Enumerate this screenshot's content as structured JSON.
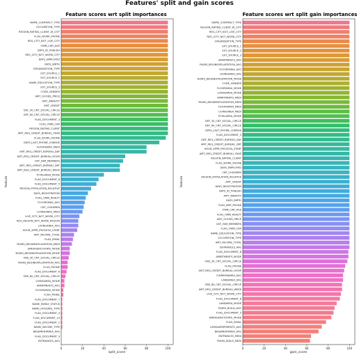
{
  "suptitle": "Features' split and gain scores",
  "chart_data": [
    {
      "type": "bar",
      "orientation": "horizontal",
      "title": "Feature scores wrt split importances",
      "xlabel": "split_score",
      "ylabel": "feature",
      "xlim": [
        0,
        105
      ],
      "xticks": [
        0,
        20,
        40,
        60,
        80,
        100
      ],
      "grid": false,
      "legend": "none",
      "palette": "husl (red-orange-yellow-green-teal-blue-purple-pink)",
      "categories": [
        "NAME_CONTRACT_TYPE",
        "OCCUPATION_TYPE",
        "REGION_RATING_CLIENT_W_CITY",
        "FLAG_WORK_PHONE",
        "REG_CITY_NOT_LIVE_CITY",
        "OWN_CAR_AGE",
        "DAYS_ID_PUBLISH",
        "REG_CITY_NOT_WORK_CITY",
        "DAYS_EMPLOYED",
        "DAYS_BIRTH",
        "ORGANIZATION_TYPE",
        "EXT_SOURCE_1",
        "EXT_SOURCE_2",
        "NAME_EDUCATION_TYPE",
        "EXT_SOURCE_3",
        "CODE_GENDER",
        "AMT_GOODS_PRICE",
        "AMT_ANNUITY",
        "AMT_CREDIT",
        "DEF_30_CNT_SOCIAL_CIRCLE",
        "DEF_60_CNT_SOCIAL_CIRCLE",
        "FLAG_DOCUMENT_3",
        "FLAG_OWN_CAR",
        "REGION_RATING_CLIENT",
        "AMT_REQ_CREDIT_BUREAU_YEAR",
        "FLAG_WORK_PHONE",
        "DAYS_LAST_PHONE_CHANGE",
        "FLOORSMAX_MEDI",
        "AMT_REQ_CREDIT_BUREAU_DAY",
        "AMT_REQ_CREDIT_BUREAU_HOUR",
        "CNT_FAM_MEMBERS",
        "AMT_REQ_CREDIT_BUREAU_QRT",
        "AMT_REQ_CREDIT_BUREAU_WEEK",
        "TOTALAREA_MODE",
        "FLAG_DOCUMENT_8",
        "FLAG_DOCUMENT_5",
        "REGION_POPULATION_RELATIVE",
        "DAYS_REGISTRATION",
        "FLAG_OWN_REALTY",
        "FLOORSMAX_AVG",
        "CNT_CHILDREN",
        "LIVINGAREA_MEDI",
        "LIVE_CITY_NOT_WORK_CITY",
        "REG_REGION_NOT_WORK_REGION",
        "LIVINGAREA_AVG",
        "HOUR_APPR_PROCESS_START",
        "AMT_INCOME_TOTAL",
        "FLAG_EMAIL",
        "YEARS_BEGINEXPLUATATION_MEDI",
        "EMERGENCYSTATE_MODE",
        "YEARS_BEGINEXPLUATATION_MODE",
        "OBS_30_CNT_SOCIAL_CIRCLE",
        "YEARS_BEGINEXPLUATATION_AVG",
        "FLAG_PHONE",
        "FLAG_DOCUMENT_6",
        "OBS_60_CNT_SOCIAL_CIRCLE",
        "LIVINGAREA_MODE",
        "APARTMENTS_AVG",
        "FLOORSMAX_MODE",
        "FLAG_MOBIL",
        "FLAG_DOCUMENT_7",
        "NAME_FAMILY_STATUS",
        "NAME_HOUSING_TYPE",
        "FLAG_DOCUMENT_4",
        "FLAG_DOCUMENT_10",
        "FLAG_DOCUMENT_2",
        "NAME_INCOME_TYPE",
        "BASEMENTAREA_AVG",
        "FLAG_DOCUMENT_9",
        "ENTRANCES_AVG"
      ],
      "values": [
        100,
        100,
        100,
        100,
        100,
        100,
        100,
        100,
        100,
        100,
        100,
        100,
        100,
        100,
        100,
        100,
        100,
        100,
        100,
        100,
        100,
        100,
        100,
        100,
        100,
        98,
        92,
        80,
        80,
        60,
        58,
        55,
        55,
        40,
        35,
        33,
        28,
        25,
        23,
        22,
        21,
        20,
        17,
        16,
        16,
        15,
        12,
        11,
        10,
        8,
        8,
        7,
        6,
        6,
        5,
        4,
        3,
        3,
        2,
        2,
        1,
        1,
        1,
        1,
        1,
        1,
        1,
        0,
        0,
        0
      ],
      "colors": [
        "#f0788b",
        "#f07a7e",
        "#f07e6f",
        "#ef835f",
        "#ec884c",
        "#e88e3f",
        "#e39336",
        "#de9733",
        "#d89c32",
        "#d1a031",
        "#c9a431",
        "#c1a831",
        "#b7ab31",
        "#acaf31",
        "#a0b231",
        "#93b432",
        "#86b734",
        "#79ba38",
        "#6cbb3e",
        "#5ebd45",
        "#4fbe4f",
        "#41be5d",
        "#35be6b",
        "#31bd78",
        "#32bc84",
        "#33ba8f",
        "#35b999",
        "#36b8a1",
        "#37b7a9",
        "#37b6b0",
        "#38b5b7",
        "#39b4bd",
        "#3ab3c3",
        "#3bb1ca",
        "#3cb0d0",
        "#3eaed7",
        "#40acdd",
        "#44a9e2",
        "#4ba6e8",
        "#55a2ec",
        "#609ef0",
        "#6c99f2",
        "#7995f4",
        "#8690f4",
        "#948bf3",
        "#a186f1",
        "#ad81ef",
        "#b87eec",
        "#c27ae9",
        "#cc76e5",
        "#d573e1",
        "#dd71dc",
        "#e46fd6",
        "#e96fcf",
        "#ed6fc8",
        "#f070c1",
        "#f272b9",
        "#f374b1",
        "#f476aa",
        "#f578a3",
        "#f47a9b",
        "#f47b94",
        "#f37c8e",
        "#f37d88",
        "#f37e83",
        "#f37f7f",
        "#f37f7b",
        "#f37f78",
        "#f37f75",
        "#f37f73"
      ]
    },
    {
      "type": "bar",
      "orientation": "horizontal",
      "title": "Feature scores wrt split gain importances",
      "xlabel": "gain_score",
      "ylabel": "feature",
      "xlim": [
        0,
        105
      ],
      "xticks": [
        0,
        20,
        40,
        60,
        80,
        100
      ],
      "grid": false,
      "legend": "none",
      "palette": "husl (red-orange-yellow-green-teal-blue-purple-pink)",
      "categories": [
        "NAME_CONTRACT_TYPE",
        "REGION_RATING_CLIENT_W_CITY",
        "REG_CITY_NOT_LIVE_CITY",
        "REG_CITY_NOT_WORK_CITY",
        "ORGANIZATION_TYPE",
        "EXT_SOURCE_1",
        "EXT_SOURCE_2",
        "EXT_SOURCE_3",
        "APARTMENTS_AVG",
        "YEARS_BEGINEXPLUATATION_AVG",
        "FLOORSMAX_AVG",
        "LIVINGAREA_AVG",
        "YEARS_BEGINEXPLUATATION_MODE",
        "CODE_GENDER",
        "FLOORSMAX_MODE",
        "LIVINGAREA_MODE",
        "APARTMENTS_MEDI",
        "YEARS_BEGINEXPLUATATION_MEDI",
        "FLOORSMAX_MEDI",
        "LIVINGAREA_MEDI",
        "TOTALAREA_MODE",
        "DEF_30_CNT_SOCIAL_CIRCLE",
        "DEF_60_CNT_SOCIAL_CIRCLE",
        "DAYS_LAST_PHONE_CHANGE",
        "FLAG_DOCUMENT_3",
        "AMT_REQ_CREDIT_BUREAU_DAY",
        "AMT_REQ_CREDIT_BUREAU_QRT",
        "HOUR_APPR_PROCESS_START",
        "AMT_REQ_CREDIT_BUREAU_YEAR",
        "REGION_RATING_CLIENT",
        "FLAG_WORK_PHONE",
        "DAYS_EMPLOYED",
        "CNT_CHILDREN",
        "REGION_POPULATION_RELATIVE",
        "AMT_CREDIT",
        "DAYS_REGISTRATION",
        "DAYS_ID_PUBLISH",
        "AMT_ANNUITY",
        "DAYS_BIRTH",
        "FLAG_EMP_PHONE",
        "OWN_CAR_AGE",
        "FLAG_OWN_REALTY",
        "AMT_GOODS_PRICE",
        "CNT_FAM_MEMBERS",
        "FLAG_OWN_CAR",
        "NAME_EDUCATION_TYPE",
        "OCCUPATION_TYPE",
        "AMT_INCOME_TOTAL",
        "ENTRANCES_AVG",
        "FLAG_DOCUMENT_8",
        "APARTMENTS_MODE",
        "OBS_30_CNT_SOCIAL_CIRCLE",
        "FLAG_PHONE",
        "AMT_REQ_CREDIT_BUREAU_HOUR",
        "COMMONAREA_AVG",
        "LANDAREA_AVG",
        "OBS_60_CNT_SOCIAL_CIRCLE",
        "AMT_REQ_CREDIT_BUREAU_WEEK",
        "LIVE_CITY_NOT_WORK_CITY",
        "FLAG_DOCUMENT_6",
        "LANDAREA_MODE",
        "YEARS_BUILD_AVG",
        "FLAG_DOCUMENT_5",
        "EMERGENCYSTATE_MODE",
        "FLAG_EMAIL",
        "LIVINGAPARTMENTS_AVG",
        "BASEMENTAREA_AVG",
        "ENTRANCES_MEDI",
        "YEARS_BUILD_MEDI"
      ],
      "values": [
        100,
        100,
        100,
        100,
        100,
        100,
        100,
        100,
        100,
        100,
        100,
        100,
        100,
        100,
        100,
        100,
        100,
        100,
        100,
        100,
        100,
        100,
        100,
        100,
        100,
        100,
        100,
        100,
        100,
        100,
        100,
        100,
        100,
        100,
        100,
        100,
        100,
        100,
        100,
        100,
        100,
        100,
        100,
        100,
        100,
        100,
        100,
        100,
        100,
        99,
        99,
        98,
        96,
        95,
        94,
        94,
        93,
        93,
        92,
        91,
        88,
        86,
        85,
        83,
        78,
        74,
        71,
        64,
        63
      ],
      "colors": [
        "#f0788b",
        "#f07a7e",
        "#f07e6f",
        "#ef835f",
        "#ec884c",
        "#e88e3f",
        "#e39336",
        "#de9733",
        "#d89c32",
        "#d1a031",
        "#c9a431",
        "#c1a831",
        "#b7ab31",
        "#acaf31",
        "#a0b231",
        "#93b432",
        "#86b734",
        "#79ba38",
        "#6cbb3e",
        "#5ebd45",
        "#4fbe4f",
        "#41be5d",
        "#35be6b",
        "#31bd78",
        "#32bc84",
        "#33ba8f",
        "#35b999",
        "#36b8a1",
        "#37b7a9",
        "#37b6b0",
        "#38b5b7",
        "#39b4bd",
        "#3ab3c3",
        "#3bb1ca",
        "#3cb0d0",
        "#3eaed7",
        "#40acdd",
        "#44a9e2",
        "#4ba6e8",
        "#55a2ec",
        "#609ef0",
        "#6c99f2",
        "#7995f4",
        "#8690f4",
        "#948bf3",
        "#a186f1",
        "#ad81ef",
        "#b87eec",
        "#c27ae9",
        "#cc76e5",
        "#d573e1",
        "#dd71dc",
        "#e46fd6",
        "#e96fcf",
        "#ed6fc8",
        "#f070c1",
        "#f272b9",
        "#f374b1",
        "#f476aa",
        "#f578a3",
        "#f47a9b",
        "#f47b94",
        "#f37c8e",
        "#f37d88",
        "#f37e83",
        "#f37f7f",
        "#f37f7b",
        "#f37f78",
        "#f37f75"
      ]
    }
  ]
}
